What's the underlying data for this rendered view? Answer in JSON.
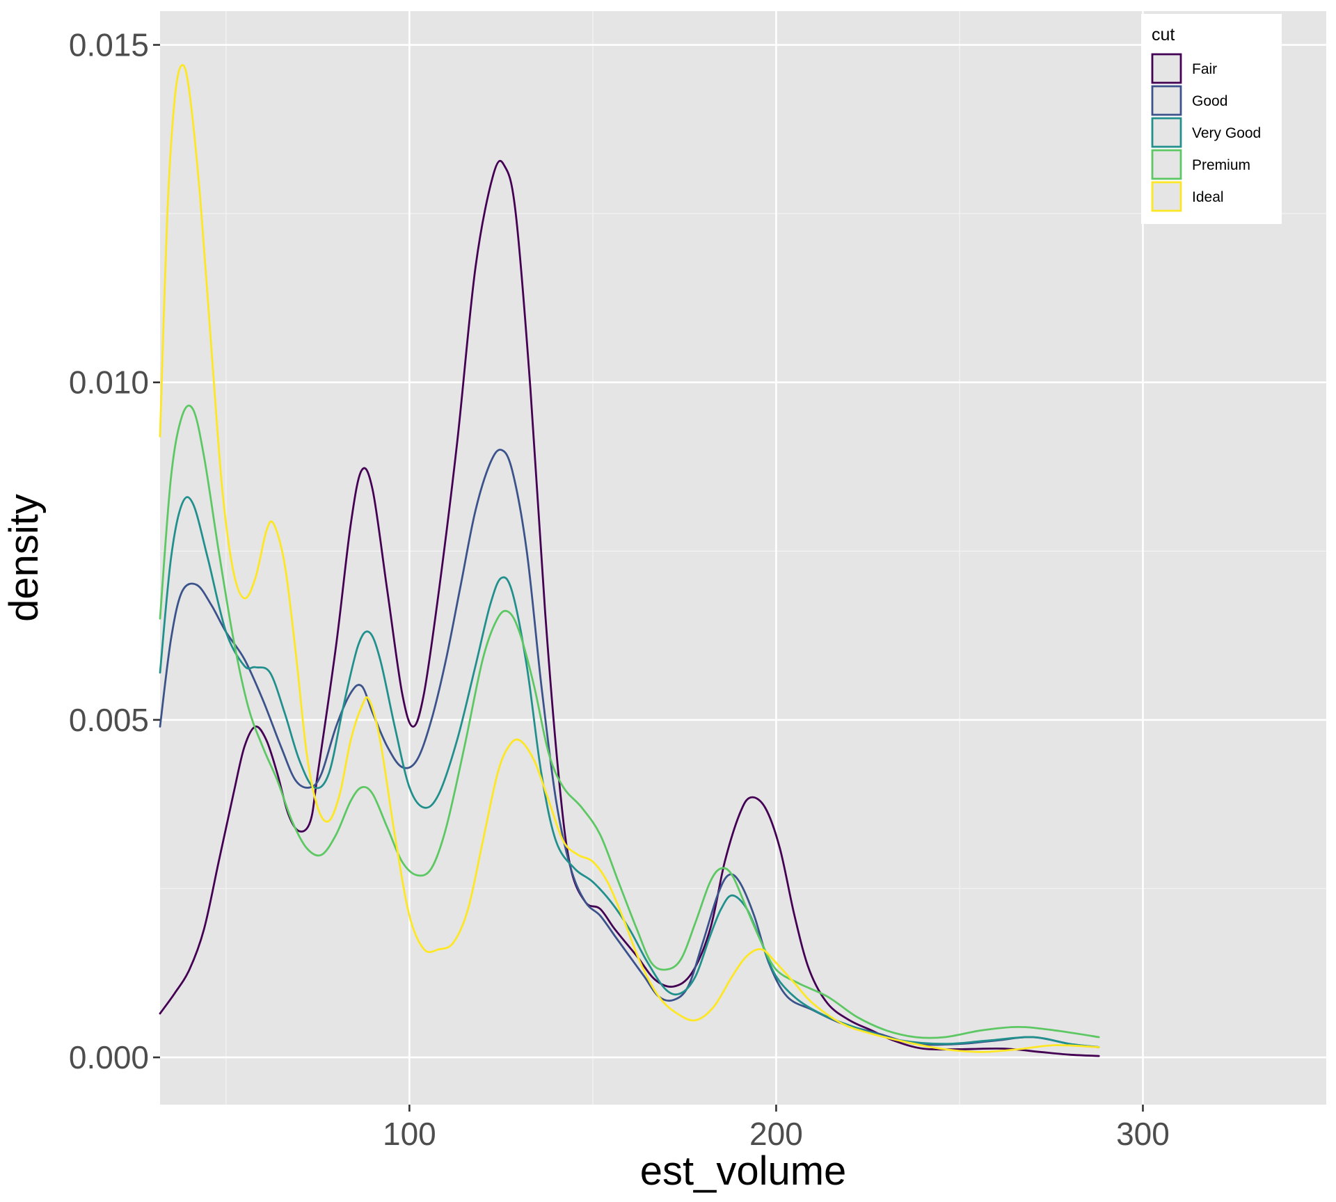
{
  "chart_data": {
    "type": "line",
    "title": "",
    "xlabel": "est_volume",
    "ylabel": "density",
    "xlim": [
      32,
      350
    ],
    "ylim": [
      -0.0007,
      0.0155
    ],
    "x_major_ticks": [
      100,
      200,
      300
    ],
    "x_minor_ticks": [
      50,
      150,
      250
    ],
    "y_major_ticks": [
      0.0,
      0.005,
      0.01,
      0.015
    ],
    "y_minor_ticks": [
      0.0025,
      0.0075,
      0.0125
    ],
    "x_tick_labels": [
      "100",
      "200",
      "300"
    ],
    "y_tick_labels": [
      "0.000",
      "0.005",
      "0.010",
      "0.015"
    ],
    "grid": true,
    "legend": {
      "title": "cut",
      "position": "top-right"
    },
    "series": [
      {
        "name": "Fair",
        "color": "#440154",
        "points": [
          [
            32,
            0.00065
          ],
          [
            36,
            0.00095
          ],
          [
            40,
            0.0013
          ],
          [
            44,
            0.0019
          ],
          [
            48,
            0.0029
          ],
          [
            52,
            0.0039
          ],
          [
            55,
            0.0046
          ],
          [
            58,
            0.0049
          ],
          [
            61,
            0.0047
          ],
          [
            64,
            0.0042
          ],
          [
            67,
            0.0036
          ],
          [
            70,
            0.00335
          ],
          [
            73,
            0.0035
          ],
          [
            75,
            0.0042
          ],
          [
            80,
            0.0061
          ],
          [
            84,
            0.0079
          ],
          [
            87,
            0.0087
          ],
          [
            90,
            0.0084
          ],
          [
            94,
            0.0069
          ],
          [
            98,
            0.0054
          ],
          [
            101,
            0.0049
          ],
          [
            104,
            0.0054
          ],
          [
            108,
            0.0069
          ],
          [
            113,
            0.0091
          ],
          [
            118,
            0.0117
          ],
          [
            123,
            0.0131
          ],
          [
            126,
            0.0132
          ],
          [
            129,
            0.0125
          ],
          [
            133,
            0.0099
          ],
          [
            137,
            0.0066
          ],
          [
            141,
            0.004
          ],
          [
            144,
            0.0028
          ],
          [
            148,
            0.0023
          ],
          [
            152,
            0.0022
          ],
          [
            156,
            0.0019
          ],
          [
            162,
            0.0015
          ],
          [
            167,
            0.00115
          ],
          [
            172,
            0.00105
          ],
          [
            177,
            0.00125
          ],
          [
            182,
            0.0019
          ],
          [
            186,
            0.0029
          ],
          [
            190,
            0.0036
          ],
          [
            193,
            0.00385
          ],
          [
            197,
            0.0037
          ],
          [
            201,
            0.0031
          ],
          [
            205,
            0.0021
          ],
          [
            209,
            0.0013
          ],
          [
            214,
            0.0008
          ],
          [
            220,
            0.00055
          ],
          [
            226,
            0.0004
          ],
          [
            232,
            0.00025
          ],
          [
            240,
            0.00013
          ],
          [
            250,
            0.00012
          ],
          [
            262,
            0.00013
          ],
          [
            272,
            8e-05
          ],
          [
            280,
            4e-05
          ],
          [
            288,
            2e-05
          ]
        ]
      },
      {
        "name": "Good",
        "color": "#3b528b",
        "points": [
          [
            32,
            0.0049
          ],
          [
            35,
            0.0062
          ],
          [
            38,
            0.0069
          ],
          [
            42,
            0.007
          ],
          [
            46,
            0.0067
          ],
          [
            50,
            0.0063
          ],
          [
            55,
            0.0059
          ],
          [
            60,
            0.0053
          ],
          [
            65,
            0.0046
          ],
          [
            69,
            0.0041
          ],
          [
            73,
            0.004
          ],
          [
            76,
            0.0042
          ],
          [
            80,
            0.0049
          ],
          [
            84,
            0.0054
          ],
          [
            87,
            0.0055
          ],
          [
            90,
            0.0051
          ],
          [
            94,
            0.0046
          ],
          [
            98,
            0.0043
          ],
          [
            102,
            0.0044
          ],
          [
            106,
            0.005
          ],
          [
            110,
            0.0059
          ],
          [
            114,
            0.007
          ],
          [
            118,
            0.0081
          ],
          [
            122,
            0.0088
          ],
          [
            125,
            0.009
          ],
          [
            128,
            0.0087
          ],
          [
            132,
            0.0075
          ],
          [
            136,
            0.0055
          ],
          [
            140,
            0.0038
          ],
          [
            144,
            0.0028
          ],
          [
            148,
            0.0023
          ],
          [
            152,
            0.0021
          ],
          [
            156,
            0.0018
          ],
          [
            160,
            0.0015
          ],
          [
            164,
            0.0012
          ],
          [
            168,
            0.0009
          ],
          [
            172,
            0.00085
          ],
          [
            176,
            0.00105
          ],
          [
            180,
            0.0017
          ],
          [
            184,
            0.0024
          ],
          [
            187,
            0.0027
          ],
          [
            190,
            0.0026
          ],
          [
            194,
            0.0021
          ],
          [
            198,
            0.0014
          ],
          [
            203,
            0.0009
          ],
          [
            210,
            0.0007
          ],
          [
            218,
            0.0005
          ],
          [
            228,
            0.00035
          ],
          [
            238,
            0.0002
          ],
          [
            250,
            0.0002
          ],
          [
            260,
            0.00025
          ],
          [
            270,
            0.0003
          ],
          [
            280,
            0.0002
          ],
          [
            288,
            0.00015
          ]
        ]
      },
      {
        "name": "Very Good",
        "color": "#21908d",
        "points": [
          [
            32,
            0.0057
          ],
          [
            35,
            0.0074
          ],
          [
            38,
            0.0082
          ],
          [
            41,
            0.0082
          ],
          [
            45,
            0.0074
          ],
          [
            50,
            0.0063
          ],
          [
            55,
            0.0058
          ],
          [
            58,
            0.00578
          ],
          [
            62,
            0.0057
          ],
          [
            66,
            0.0051
          ],
          [
            70,
            0.0044
          ],
          [
            74,
            0.004
          ],
          [
            78,
            0.0042
          ],
          [
            82,
            0.0052
          ],
          [
            86,
            0.0061
          ],
          [
            89,
            0.0063
          ],
          [
            92,
            0.0059
          ],
          [
            96,
            0.0049
          ],
          [
            100,
            0.004
          ],
          [
            104,
            0.0037
          ],
          [
            108,
            0.0039
          ],
          [
            113,
            0.0047
          ],
          [
            118,
            0.0058
          ],
          [
            122,
            0.0067
          ],
          [
            125,
            0.0071
          ],
          [
            128,
            0.0069
          ],
          [
            132,
            0.0058
          ],
          [
            136,
            0.0042
          ],
          [
            140,
            0.0032
          ],
          [
            145,
            0.0028
          ],
          [
            150,
            0.0026
          ],
          [
            155,
            0.0023
          ],
          [
            160,
            0.0019
          ],
          [
            165,
            0.0014
          ],
          [
            170,
            0.001
          ],
          [
            174,
            0.00095
          ],
          [
            178,
            0.0012
          ],
          [
            182,
            0.0018
          ],
          [
            185,
            0.0022
          ],
          [
            188,
            0.0024
          ],
          [
            192,
            0.0022
          ],
          [
            196,
            0.0017
          ],
          [
            200,
            0.0012
          ],
          [
            206,
            0.00085
          ],
          [
            214,
            0.0006
          ],
          [
            224,
            0.0004
          ],
          [
            234,
            0.00025
          ],
          [
            246,
            0.0002
          ],
          [
            258,
            0.00025
          ],
          [
            270,
            0.0003
          ],
          [
            280,
            0.0002
          ],
          [
            288,
            0.00015
          ]
        ]
      },
      {
        "name": "Premium",
        "color": "#5dc863",
        "points": [
          [
            32,
            0.0065
          ],
          [
            35,
            0.0086
          ],
          [
            38,
            0.0095
          ],
          [
            41,
            0.0096
          ],
          [
            44,
            0.0089
          ],
          [
            48,
            0.0075
          ],
          [
            52,
            0.0062
          ],
          [
            56,
            0.0052
          ],
          [
            60,
            0.0046
          ],
          [
            64,
            0.0041
          ],
          [
            68,
            0.0035
          ],
          [
            72,
            0.0031
          ],
          [
            76,
            0.003
          ],
          [
            80,
            0.0033
          ],
          [
            84,
            0.0038
          ],
          [
            87,
            0.004
          ],
          [
            90,
            0.0039
          ],
          [
            94,
            0.0034
          ],
          [
            98,
            0.0029
          ],
          [
            102,
            0.0027
          ],
          [
            106,
            0.0028
          ],
          [
            110,
            0.0034
          ],
          [
            115,
            0.0046
          ],
          [
            120,
            0.0059
          ],
          [
            124,
            0.0065
          ],
          [
            127,
            0.0066
          ],
          [
            130,
            0.0063
          ],
          [
            134,
            0.0055
          ],
          [
            138,
            0.0045
          ],
          [
            142,
            0.004
          ],
          [
            147,
            0.0037
          ],
          [
            152,
            0.0033
          ],
          [
            157,
            0.0026
          ],
          [
            162,
            0.0019
          ],
          [
            166,
            0.0014
          ],
          [
            170,
            0.0013
          ],
          [
            174,
            0.00145
          ],
          [
            178,
            0.002
          ],
          [
            182,
            0.0026
          ],
          [
            185,
            0.0028
          ],
          [
            188,
            0.0027
          ],
          [
            192,
            0.0022
          ],
          [
            196,
            0.0017
          ],
          [
            200,
            0.0013
          ],
          [
            206,
            0.0011
          ],
          [
            214,
            0.0009
          ],
          [
            222,
            0.0006
          ],
          [
            230,
            0.0004
          ],
          [
            238,
            0.0003
          ],
          [
            246,
            0.0003
          ],
          [
            256,
            0.0004
          ],
          [
            266,
            0.00045
          ],
          [
            276,
            0.0004
          ],
          [
            288,
            0.0003
          ]
        ]
      },
      {
        "name": "Ideal",
        "color": "#fde725",
        "points": [
          [
            32,
            0.0092
          ],
          [
            34,
            0.0125
          ],
          [
            36,
            0.0142
          ],
          [
            38,
            0.0147
          ],
          [
            40,
            0.0143
          ],
          [
            43,
            0.0127
          ],
          [
            46,
            0.0105
          ],
          [
            49,
            0.0084
          ],
          [
            52,
            0.0072
          ],
          [
            55,
            0.0068
          ],
          [
            58,
            0.0071
          ],
          [
            61,
            0.0078
          ],
          [
            63,
            0.0079
          ],
          [
            66,
            0.0073
          ],
          [
            69,
            0.006
          ],
          [
            72,
            0.0045
          ],
          [
            75,
            0.0037
          ],
          [
            78,
            0.0035
          ],
          [
            81,
            0.0039
          ],
          [
            84,
            0.0047
          ],
          [
            87,
            0.0052
          ],
          [
            89,
            0.0053
          ],
          [
            92,
            0.0047
          ],
          [
            96,
            0.0033
          ],
          [
            100,
            0.0021
          ],
          [
            104,
            0.0016
          ],
          [
            108,
            0.0016
          ],
          [
            112,
            0.0017
          ],
          [
            116,
            0.0022
          ],
          [
            120,
            0.0032
          ],
          [
            124,
            0.0042
          ],
          [
            127,
            0.0046
          ],
          [
            130,
            0.0047
          ],
          [
            134,
            0.0044
          ],
          [
            138,
            0.0038
          ],
          [
            142,
            0.0032
          ],
          [
            146,
            0.003
          ],
          [
            150,
            0.0029
          ],
          [
            154,
            0.0026
          ],
          [
            158,
            0.0021
          ],
          [
            163,
            0.0014
          ],
          [
            168,
            0.0009
          ],
          [
            173,
            0.00065
          ],
          [
            178,
            0.00055
          ],
          [
            183,
            0.00075
          ],
          [
            188,
            0.0012
          ],
          [
            192,
            0.0015
          ],
          [
            196,
            0.0016
          ],
          [
            200,
            0.0014
          ],
          [
            205,
            0.0011
          ],
          [
            210,
            0.0008
          ],
          [
            218,
            0.0005
          ],
          [
            226,
            0.00035
          ],
          [
            236,
            0.00022
          ],
          [
            246,
            0.00012
          ],
          [
            256,
            8e-05
          ],
          [
            266,
            0.00012
          ],
          [
            276,
            0.00018
          ],
          [
            288,
            0.00015
          ]
        ]
      }
    ]
  }
}
